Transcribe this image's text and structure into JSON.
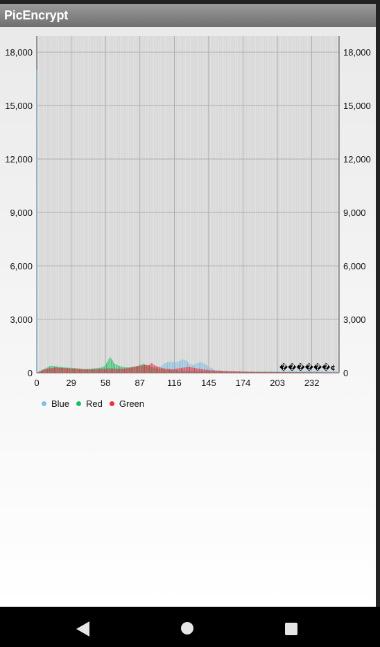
{
  "app_bar": {
    "title": "PicEncrypt"
  },
  "chart_data": {
    "type": "bar",
    "x_ticks": [
      "0",
      "29",
      "58",
      "87",
      "116",
      "145",
      "174",
      "203",
      "232"
    ],
    "xlim": [
      0,
      255
    ],
    "y_ticks": [
      "0",
      "3,000",
      "6,000",
      "9,000",
      "12,000",
      "15,000",
      "18,000"
    ],
    "ylim": [
      0,
      18900
    ],
    "annotation": "������¢",
    "grid": true,
    "legend_position": "bottom-left",
    "series": [
      {
        "name": "Blue",
        "color": "#7fbfdf",
        "points": [
          [
            0,
            17000
          ],
          [
            5,
            180
          ],
          [
            10,
            250
          ],
          [
            15,
            280
          ],
          [
            20,
            300
          ],
          [
            25,
            260
          ],
          [
            30,
            230
          ],
          [
            35,
            200
          ],
          [
            40,
            200
          ],
          [
            45,
            210
          ],
          [
            50,
            230
          ],
          [
            55,
            250
          ],
          [
            60,
            280
          ],
          [
            65,
            260
          ],
          [
            70,
            250
          ],
          [
            75,
            240
          ],
          [
            80,
            280
          ],
          [
            85,
            350
          ],
          [
            90,
            420
          ],
          [
            95,
            380
          ],
          [
            100,
            320
          ],
          [
            105,
            360
          ],
          [
            108,
            550
          ],
          [
            111,
            600
          ],
          [
            114,
            620
          ],
          [
            117,
            580
          ],
          [
            120,
            650
          ],
          [
            123,
            750
          ],
          [
            126,
            680
          ],
          [
            129,
            500
          ],
          [
            132,
            420
          ],
          [
            135,
            550
          ],
          [
            138,
            600
          ],
          [
            141,
            520
          ],
          [
            144,
            380
          ],
          [
            150,
            150
          ],
          [
            160,
            90
          ],
          [
            170,
            70
          ],
          [
            180,
            60
          ],
          [
            190,
            60
          ],
          [
            200,
            80
          ],
          [
            210,
            100
          ],
          [
            220,
            110
          ],
          [
            230,
            120
          ],
          [
            240,
            100
          ],
          [
            250,
            80
          ],
          [
            255,
            60
          ]
        ]
      },
      {
        "name": "Red",
        "color": "#1fbf5f",
        "points": [
          [
            0,
            17000
          ],
          [
            3,
            100
          ],
          [
            6,
            200
          ],
          [
            9,
            300
          ],
          [
            12,
            400
          ],
          [
            15,
            380
          ],
          [
            20,
            320
          ],
          [
            25,
            300
          ],
          [
            30,
            280
          ],
          [
            35,
            250
          ],
          [
            40,
            200
          ],
          [
            45,
            220
          ],
          [
            50,
            260
          ],
          [
            55,
            300
          ],
          [
            58,
            420
          ],
          [
            60,
            650
          ],
          [
            62,
            900
          ],
          [
            64,
            700
          ],
          [
            66,
            500
          ],
          [
            70,
            380
          ],
          [
            75,
            300
          ],
          [
            80,
            320
          ],
          [
            85,
            380
          ],
          [
            88,
            450
          ],
          [
            90,
            520
          ],
          [
            94,
            400
          ],
          [
            98,
            300
          ],
          [
            105,
            200
          ],
          [
            115,
            150
          ],
          [
            125,
            120
          ],
          [
            135,
            110
          ],
          [
            150,
            80
          ],
          [
            170,
            60
          ],
          [
            190,
            50
          ],
          [
            210,
            40
          ],
          [
            230,
            30
          ],
          [
            255,
            20
          ]
        ]
      },
      {
        "name": "Green",
        "color": "#ef2f3f",
        "points": [
          [
            0,
            17000
          ],
          [
            5,
            150
          ],
          [
            10,
            250
          ],
          [
            15,
            300
          ],
          [
            20,
            280
          ],
          [
            25,
            260
          ],
          [
            30,
            240
          ],
          [
            35,
            220
          ],
          [
            40,
            200
          ],
          [
            45,
            190
          ],
          [
            50,
            200
          ],
          [
            55,
            210
          ],
          [
            60,
            230
          ],
          [
            65,
            220
          ],
          [
            70,
            210
          ],
          [
            75,
            250
          ],
          [
            80,
            300
          ],
          [
            85,
            380
          ],
          [
            90,
            420
          ],
          [
            95,
            450
          ],
          [
            97,
            550
          ],
          [
            100,
            400
          ],
          [
            105,
            280
          ],
          [
            110,
            220
          ],
          [
            115,
            200
          ],
          [
            120,
            260
          ],
          [
            125,
            300
          ],
          [
            128,
            340
          ],
          [
            131,
            300
          ],
          [
            135,
            250
          ],
          [
            140,
            200
          ],
          [
            145,
            160
          ],
          [
            150,
            130
          ],
          [
            160,
            100
          ],
          [
            170,
            80
          ],
          [
            180,
            60
          ],
          [
            200,
            40
          ],
          [
            220,
            30
          ],
          [
            240,
            25
          ],
          [
            255,
            20
          ]
        ]
      }
    ]
  },
  "nav": {
    "back_icon": "back-icon",
    "home_icon": "home-icon",
    "recents_icon": "recents-icon"
  }
}
